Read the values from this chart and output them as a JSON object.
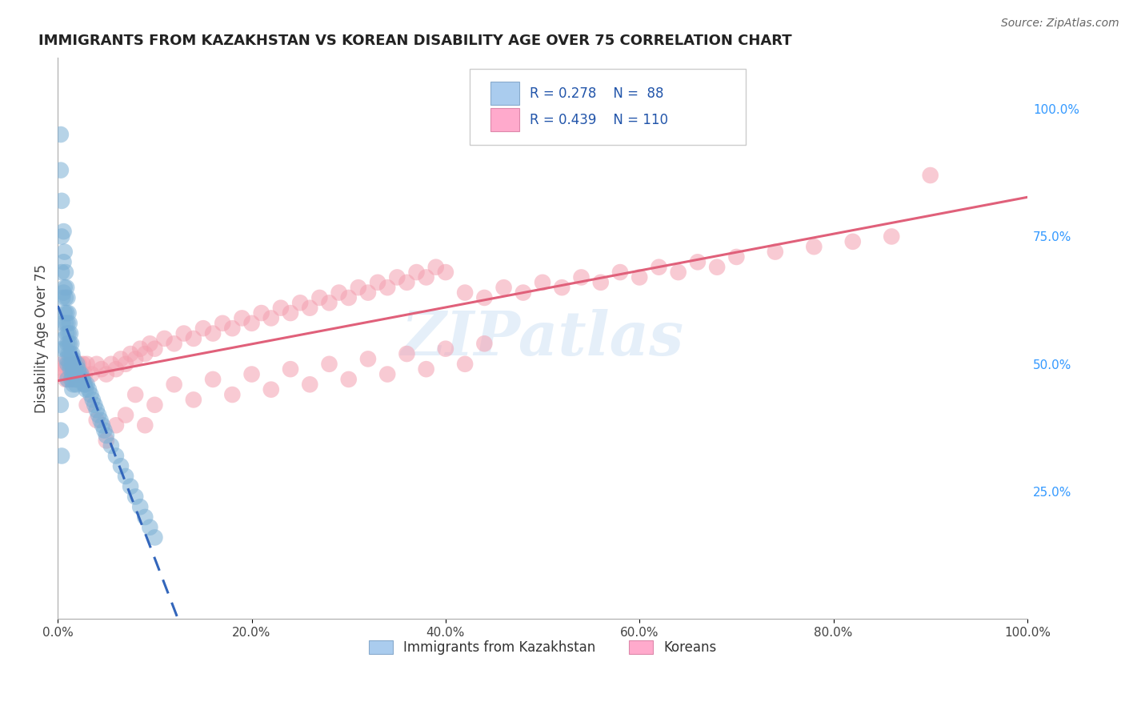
{
  "title": "IMMIGRANTS FROM KAZAKHSTAN VS KOREAN DISABILITY AGE OVER 75 CORRELATION CHART",
  "source": "Source: ZipAtlas.com",
  "ylabel": "Disability Age Over 75",
  "watermark": "ZIPatlas",
  "blue_R": 0.278,
  "blue_N": 88,
  "pink_R": 0.439,
  "pink_N": 110,
  "blue_color": "#7BAFD4",
  "pink_color": "#F4A0B0",
  "blue_line_color": "#3366BB",
  "pink_line_color": "#E0607A",
  "legend_label_blue": "Immigrants from Kazakhstan",
  "legend_label_pink": "Koreans",
  "right_ytick_labels": [
    "25.0%",
    "50.0%",
    "75.0%",
    "100.0%"
  ],
  "right_ytick_positions": [
    0.25,
    0.5,
    0.75,
    1.0
  ],
  "xlim": [
    0.0,
    1.0
  ],
  "ylim": [
    0.0,
    1.1
  ],
  "grid_color": "#DDDDDD",
  "blue_scatter_x": [
    0.003,
    0.003,
    0.004,
    0.004,
    0.004,
    0.005,
    0.005,
    0.005,
    0.006,
    0.006,
    0.006,
    0.007,
    0.007,
    0.007,
    0.007,
    0.008,
    0.008,
    0.008,
    0.008,
    0.009,
    0.009,
    0.009,
    0.009,
    0.01,
    0.01,
    0.01,
    0.01,
    0.01,
    0.011,
    0.011,
    0.011,
    0.012,
    0.012,
    0.012,
    0.013,
    0.013,
    0.013,
    0.014,
    0.014,
    0.014,
    0.015,
    0.015,
    0.015,
    0.015,
    0.016,
    0.016,
    0.016,
    0.017,
    0.017,
    0.018,
    0.018,
    0.019,
    0.019,
    0.02,
    0.02,
    0.021,
    0.022,
    0.023,
    0.024,
    0.025,
    0.026,
    0.027,
    0.028,
    0.029,
    0.03,
    0.032,
    0.034,
    0.036,
    0.038,
    0.04,
    0.042,
    0.044,
    0.046,
    0.048,
    0.05,
    0.055,
    0.06,
    0.065,
    0.07,
    0.075,
    0.08,
    0.085,
    0.09,
    0.095,
    0.1,
    0.003,
    0.003,
    0.004
  ],
  "blue_scatter_y": [
    0.95,
    0.88,
    0.82,
    0.75,
    0.68,
    0.63,
    0.58,
    0.53,
    0.76,
    0.7,
    0.64,
    0.72,
    0.65,
    0.6,
    0.55,
    0.68,
    0.63,
    0.58,
    0.53,
    0.65,
    0.6,
    0.56,
    0.51,
    0.63,
    0.58,
    0.54,
    0.5,
    0.47,
    0.6,
    0.56,
    0.52,
    0.58,
    0.54,
    0.5,
    0.56,
    0.52,
    0.49,
    0.54,
    0.5,
    0.47,
    0.52,
    0.5,
    0.48,
    0.45,
    0.51,
    0.49,
    0.46,
    0.5,
    0.48,
    0.49,
    0.47,
    0.48,
    0.46,
    0.5,
    0.47,
    0.49,
    0.48,
    0.47,
    0.48,
    0.47,
    0.47,
    0.46,
    0.46,
    0.45,
    0.46,
    0.45,
    0.44,
    0.43,
    0.42,
    0.41,
    0.4,
    0.39,
    0.38,
    0.37,
    0.36,
    0.34,
    0.32,
    0.3,
    0.28,
    0.26,
    0.24,
    0.22,
    0.2,
    0.18,
    0.16,
    0.42,
    0.37,
    0.32
  ],
  "pink_scatter_x": [
    0.005,
    0.006,
    0.007,
    0.008,
    0.009,
    0.01,
    0.011,
    0.012,
    0.013,
    0.014,
    0.015,
    0.016,
    0.017,
    0.018,
    0.019,
    0.02,
    0.022,
    0.024,
    0.026,
    0.028,
    0.03,
    0.035,
    0.04,
    0.045,
    0.05,
    0.055,
    0.06,
    0.065,
    0.07,
    0.075,
    0.08,
    0.085,
    0.09,
    0.095,
    0.1,
    0.11,
    0.12,
    0.13,
    0.14,
    0.15,
    0.16,
    0.17,
    0.18,
    0.19,
    0.2,
    0.21,
    0.22,
    0.23,
    0.24,
    0.25,
    0.26,
    0.27,
    0.28,
    0.29,
    0.3,
    0.31,
    0.32,
    0.33,
    0.34,
    0.35,
    0.36,
    0.37,
    0.38,
    0.39,
    0.4,
    0.42,
    0.44,
    0.46,
    0.48,
    0.5,
    0.52,
    0.54,
    0.56,
    0.58,
    0.6,
    0.62,
    0.64,
    0.66,
    0.68,
    0.7,
    0.74,
    0.78,
    0.82,
    0.86,
    0.9,
    0.03,
    0.04,
    0.05,
    0.06,
    0.07,
    0.08,
    0.09,
    0.1,
    0.12,
    0.14,
    0.16,
    0.18,
    0.2,
    0.22,
    0.24,
    0.26,
    0.28,
    0.3,
    0.32,
    0.34,
    0.36,
    0.38,
    0.4,
    0.42,
    0.44
  ],
  "pink_scatter_y": [
    0.5,
    0.48,
    0.49,
    0.47,
    0.5,
    0.48,
    0.47,
    0.5,
    0.48,
    0.49,
    0.47,
    0.5,
    0.48,
    0.47,
    0.5,
    0.48,
    0.5,
    0.48,
    0.5,
    0.48,
    0.5,
    0.48,
    0.5,
    0.49,
    0.48,
    0.5,
    0.49,
    0.51,
    0.5,
    0.52,
    0.51,
    0.53,
    0.52,
    0.54,
    0.53,
    0.55,
    0.54,
    0.56,
    0.55,
    0.57,
    0.56,
    0.58,
    0.57,
    0.59,
    0.58,
    0.6,
    0.59,
    0.61,
    0.6,
    0.62,
    0.61,
    0.63,
    0.62,
    0.64,
    0.63,
    0.65,
    0.64,
    0.66,
    0.65,
    0.67,
    0.66,
    0.68,
    0.67,
    0.69,
    0.68,
    0.64,
    0.63,
    0.65,
    0.64,
    0.66,
    0.65,
    0.67,
    0.66,
    0.68,
    0.67,
    0.69,
    0.68,
    0.7,
    0.69,
    0.71,
    0.72,
    0.73,
    0.74,
    0.75,
    0.87,
    0.42,
    0.39,
    0.35,
    0.38,
    0.4,
    0.44,
    0.38,
    0.42,
    0.46,
    0.43,
    0.47,
    0.44,
    0.48,
    0.45,
    0.49,
    0.46,
    0.5,
    0.47,
    0.51,
    0.48,
    0.52,
    0.49,
    0.53,
    0.5,
    0.54
  ]
}
